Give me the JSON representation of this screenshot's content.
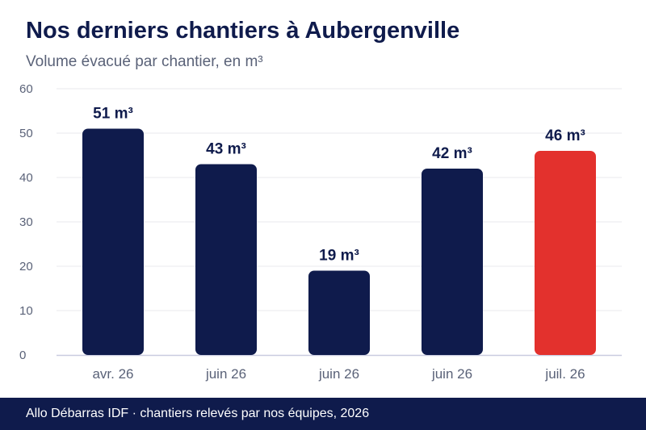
{
  "header": {
    "title": "Nos derniers chantiers à Aubergenville",
    "subtitle": "Volume évacué par chantier, en m³"
  },
  "footer": {
    "text": "Allo Débarras IDF · chantiers relevés par nos équipes, 2026"
  },
  "colors": {
    "bar": "#0f1b4c",
    "highlight": "#e3312d",
    "grid": "#e9eaee",
    "axis": "#c9cbe0",
    "tick_text": "#5a6278",
    "label_text": "#0f1b4c"
  },
  "chart_data": {
    "type": "bar",
    "title": "Nos derniers chantiers à Aubergenville",
    "subtitle": "Volume évacué par chantier, en m³",
    "categories": [
      "avr. 26",
      "juin 26",
      "juin 26",
      "juin 26",
      "juil. 26"
    ],
    "values": [
      51,
      43,
      19,
      42,
      46
    ],
    "data_labels": [
      "51 m³",
      "43 m³",
      "19 m³",
      "42 m³",
      "46 m³"
    ],
    "highlight_index": 4,
    "ylim": [
      0,
      60
    ],
    "yticks": [
      0,
      10,
      20,
      30,
      40,
      50,
      60
    ],
    "grid": true,
    "xlabel": "",
    "ylabel": ""
  }
}
